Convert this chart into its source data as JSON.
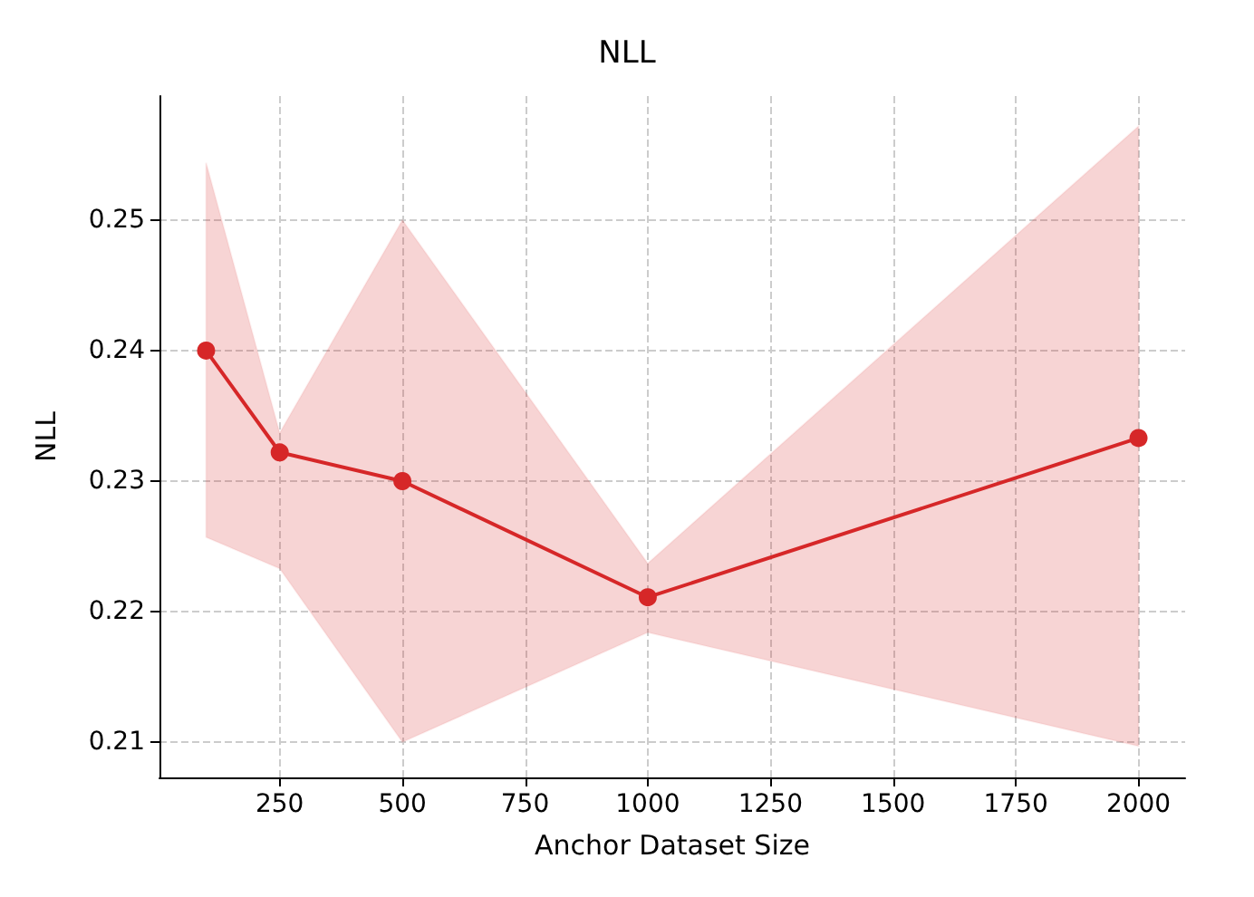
{
  "chart_data": {
    "type": "line",
    "title": "NLL",
    "xlabel": "Anchor Dataset Size",
    "ylabel": "NLL",
    "xlim": [
      5,
      2095
    ],
    "xticks": [
      250,
      500,
      750,
      1000,
      1250,
      1500,
      1750,
      2000
    ],
    "ylim": [
      0.2073,
      0.2595
    ],
    "yticks": [
      0.21,
      0.22,
      0.23,
      0.24,
      0.25
    ],
    "grid": true,
    "marker": "circle",
    "line_style": "solid",
    "series": [
      {
        "color": "#d62728",
        "x": [
          100,
          250,
          500,
          1000,
          2000
        ],
        "values": [
          0.24,
          0.2322,
          0.23,
          0.2211,
          0.2333
        ],
        "lower": [
          0.2257,
          0.2233,
          0.21,
          0.2184,
          0.2097
        ],
        "upper": [
          0.2544,
          0.2337,
          0.25,
          0.2237,
          0.2572
        ]
      }
    ]
  }
}
